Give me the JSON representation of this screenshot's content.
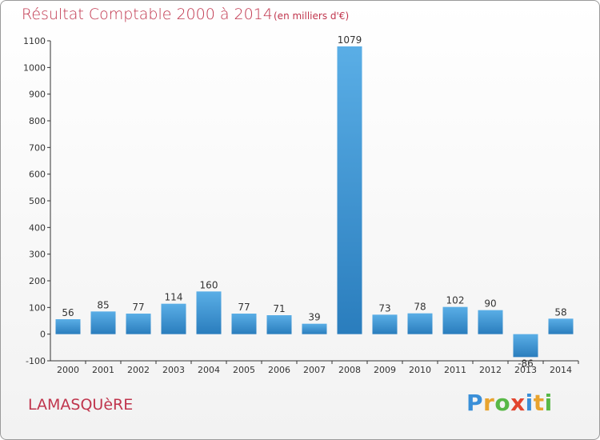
{
  "header": {
    "title": "Résultat Comptable 2000 à 2014",
    "subtitle": "(en milliers d'€)"
  },
  "footer": {
    "commune": "LAMASQUèRE"
  },
  "brand": {
    "letters": [
      "P",
      "r",
      "o",
      "x",
      "i",
      "t",
      "i"
    ],
    "colors": [
      "#3a8fd8",
      "#e8a32e",
      "#58b847",
      "#e2452f",
      "#3a8fd8",
      "#e8a32e",
      "#58b847"
    ]
  },
  "colors": {
    "bar_top": "#5aaee6",
    "bar_bottom": "#2a7dbd",
    "title": "#c0354d"
  },
  "chart_data": {
    "type": "bar",
    "title": "Résultat Comptable 2000 à 2014",
    "subtitle": "(en milliers d'€)",
    "xlabel": "",
    "ylabel": "",
    "ylim": [
      -100,
      1100
    ],
    "yticks": [
      -100,
      0,
      100,
      200,
      300,
      400,
      500,
      600,
      700,
      800,
      900,
      1000,
      1100
    ],
    "grid": false,
    "categories": [
      "2000",
      "2001",
      "2002",
      "2003",
      "2004",
      "2005",
      "2006",
      "2007",
      "2008",
      "2009",
      "2010",
      "2011",
      "2012",
      "2013",
      "2014"
    ],
    "values": [
      56,
      85,
      77,
      114,
      160,
      77,
      71,
      39,
      1079,
      73,
      78,
      102,
      90,
      -86,
      58
    ]
  }
}
